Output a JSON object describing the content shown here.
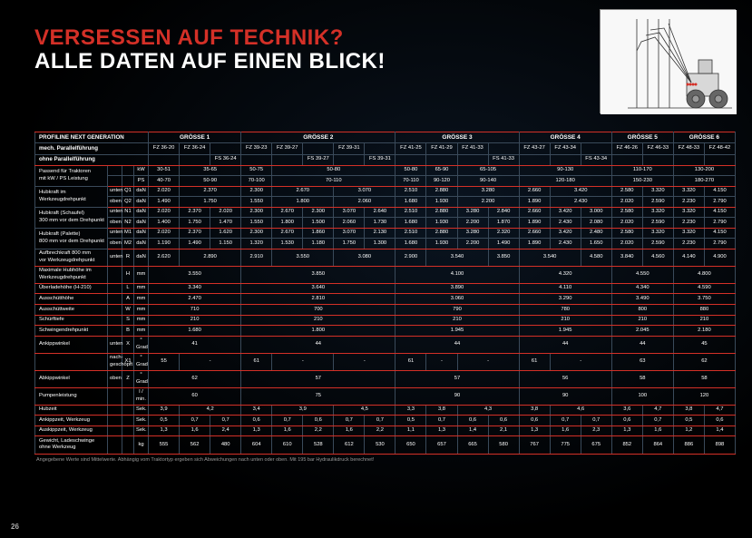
{
  "header": {
    "line1": "VERSESSEN AUF TECHNIK?",
    "line2": "ALLE DATEN AUF EINEN BLICK!"
  },
  "footnote": "Angegebene Werte sind Mittelwerte. Abhängig vom Traktortyp ergeben sich Abweichungen nach unten oder oben.\nMit 195 bar Hydraulikdruck berechnet!",
  "pagenum": "26",
  "section": "PROFILINE NEXT GENERATION",
  "groesse": [
    "GRÖSSE 1",
    "GRÖSSE 2",
    "GRÖSSE 3",
    "GRÖSSE 4",
    "GRÖSSE 5",
    "GRÖSSE 6"
  ],
  "row_mit": "mech. Parallelführung",
  "row_ohne": "ohne Parallelführung",
  "models_mit": [
    "FZ 36-20",
    "FZ 36-24",
    "",
    "FZ 39-23",
    "FZ 39-27",
    "",
    "FZ 39-31",
    "",
    "FZ 41-25",
    "FZ 41-29",
    "FZ 41-33",
    "",
    "FZ 43-27",
    "FZ 43-34",
    "",
    "FZ 46-26",
    "FZ 46-33",
    "FZ 48-33",
    "FZ 48-42"
  ],
  "models_ohne": [
    "",
    "",
    "FS 36-24",
    "",
    "",
    "FS 39-27",
    "",
    "FS 39-31",
    "",
    "",
    "",
    "FS 41-33",
    "",
    "",
    "FS 43-34",
    "",
    "",
    "",
    ""
  ],
  "rows": [
    {
      "lbl": "Passend für Traktoren\nmit kW / PS Leistung",
      "sub": [
        "",
        ""
      ],
      "u": [
        "kW",
        "PS"
      ],
      "v": [
        [
          "30-51",
          "40-70"
        ],
        [
          "35-65",
          "50-90"
        ],
        "",
        [
          "50-75",
          "70-100"
        ],
        [
          "50-80",
          "70-110"
        ],
        "",
        "",
        "",
        [
          "50-80",
          "70-110"
        ],
        [
          "65-90",
          "90-120"
        ],
        [
          "65-105",
          "90-140"
        ],
        "",
        [
          "90-130",
          "120-180"
        ],
        "",
        "",
        [
          "110-170",
          "150-230"
        ],
        "",
        [
          "130-200",
          "180-270"
        ],
        ""
      ]
    },
    {
      "lbl": "Hubkraft im\nWerkzeugdrehpunkt",
      "sub": [
        "unten",
        "oben"
      ],
      "ucol": [
        "Q1",
        "Q2"
      ],
      "u": [
        "daN",
        "daN"
      ],
      "v": [
        [
          "2.020",
          "1.490"
        ],
        [
          "2.370",
          "1.750"
        ],
        "",
        [
          "2.300",
          "1.550"
        ],
        [
          "2.670",
          "1.800"
        ],
        "",
        [
          "3.070",
          "2.060"
        ],
        "",
        [
          "2.510",
          "1.680"
        ],
        [
          "2.880",
          "1.930"
        ],
        [
          "3.280",
          "2.200"
        ],
        "",
        [
          "2.660",
          "1.890"
        ],
        [
          "3.420",
          "2.430"
        ],
        "",
        [
          "2.580",
          "2.020"
        ],
        [
          "3.320",
          "2.590"
        ],
        [
          "3.320",
          "2.230"
        ],
        [
          "4.150",
          "2.790"
        ]
      ]
    },
    {
      "lbl": "Hubkraft (Schaufel)\n300 mm vor dem Drehpunkt",
      "sub": [
        "unten",
        "oben"
      ],
      "ucol": [
        "N1",
        "N2"
      ],
      "u": [
        "daN",
        "daN"
      ],
      "v": [
        [
          "2.020",
          "1.400"
        ],
        [
          "2.370",
          "1.750"
        ],
        [
          "2.020",
          "1.470"
        ],
        [
          "2.300",
          "1.550"
        ],
        [
          "2.670",
          "1.800"
        ],
        [
          "2.300",
          "1.500"
        ],
        [
          "3.070",
          "2.060"
        ],
        [
          "2.640",
          "1.730"
        ],
        [
          "2.510",
          "1.680"
        ],
        [
          "2.880",
          "1.930"
        ],
        [
          "3.280",
          "2.200"
        ],
        [
          "2.840",
          "1.870"
        ],
        [
          "2.660",
          "1.890"
        ],
        [
          "3.420",
          "2.430"
        ],
        [
          "3.000",
          "2.080"
        ],
        [
          "2.580",
          "2.020"
        ],
        [
          "3.320",
          "2.590"
        ],
        [
          "3.320",
          "2.230"
        ],
        [
          "4.150",
          "2.790"
        ]
      ]
    },
    {
      "lbl": "Hubkraft (Palette)\n800 mm vor dem Drehpunkt",
      "sub": [
        "unten",
        "oben"
      ],
      "ucol": [
        "M1",
        "M2"
      ],
      "u": [
        "daN",
        "daN"
      ],
      "v": [
        [
          "2.020",
          "1.190"
        ],
        [
          "2.370",
          "1.490"
        ],
        [
          "1.620",
          "1.150"
        ],
        [
          "2.300",
          "1.320"
        ],
        [
          "2.670",
          "1.530"
        ],
        [
          "1.860",
          "1.180"
        ],
        [
          "3.070",
          "1.750"
        ],
        [
          "2.130",
          "1.300"
        ],
        [
          "2.510",
          "1.680"
        ],
        [
          "2.880",
          "1.930"
        ],
        [
          "3.280",
          "2.200"
        ],
        [
          "2.320",
          "1.490"
        ],
        [
          "2.660",
          "1.890"
        ],
        [
          "3.420",
          "2.430"
        ],
        [
          "2.480",
          "1.650"
        ],
        [
          "2.580",
          "2.020"
        ],
        [
          "3.320",
          "2.590"
        ],
        [
          "3.320",
          "2.230"
        ],
        [
          "4.150",
          "2.790"
        ]
      ]
    },
    {
      "lbl": "Aufbrechkraft 800 mm\nvor Werkzeugdrehpunkt",
      "sub": [
        "unten"
      ],
      "ucol": [
        "R"
      ],
      "u": [
        "daN"
      ],
      "v": [
        [
          "2.620"
        ],
        [
          "2.890"
        ],
        "",
        [
          "2.910"
        ],
        [
          "3.550"
        ],
        "",
        [
          "3.080"
        ],
        "",
        [
          "2.900"
        ],
        [
          "3.540"
        ],
        "",
        [
          "3.850"
        ],
        [
          "3.540"
        ],
        "",
        [
          "4.580"
        ],
        [
          "3.840"
        ],
        [
          "4.560"
        ],
        [
          "4.140"
        ],
        [
          "4.900"
        ]
      ]
    },
    {
      "lbl": "Maximale Hubhöhe im\nWerkzeugdrehpunkt",
      "u": "mm",
      "ucol": "H",
      "single": true,
      "v": [
        "3.550",
        "",
        "",
        "3.850",
        "",
        "",
        "",
        "",
        "4.100",
        "",
        "",
        "",
        "4.320",
        "",
        "",
        "4.550",
        "",
        "4.800",
        ""
      ]
    },
    {
      "lbl": "Überladehöhe (H-210)",
      "u": "mm",
      "ucol": "L",
      "single": true,
      "v": [
        "3.340",
        "",
        "",
        "3.640",
        "",
        "",
        "",
        "",
        "3.890",
        "",
        "",
        "",
        "4.110",
        "",
        "",
        "4.340",
        "",
        "4.590",
        ""
      ]
    },
    {
      "lbl": "Ausschütthöhe",
      "u": "mm",
      "ucol": "A",
      "single": true,
      "v": [
        "2.470",
        "",
        "",
        "2.810",
        "",
        "",
        "",
        "",
        "3.060",
        "",
        "",
        "",
        "3.290",
        "",
        "",
        "3.490",
        "",
        "3.750",
        ""
      ]
    },
    {
      "lbl": "Ausschüttweite",
      "u": "mm",
      "ucol": "W",
      "single": true,
      "v": [
        "710",
        "",
        "",
        "700",
        "",
        "",
        "",
        "",
        "790",
        "",
        "",
        "",
        "780",
        "",
        "",
        "800",
        "",
        "880",
        ""
      ]
    },
    {
      "lbl": "Schürftiefe",
      "u": "mm",
      "ucol": "S",
      "single": true,
      "v": [
        "210",
        "",
        "",
        "210",
        "",
        "",
        "",
        "",
        "210",
        "",
        "",
        "",
        "210",
        "",
        "",
        "210",
        "",
        "210",
        ""
      ]
    },
    {
      "lbl": "Schwingendrehpunkt",
      "u": "mm",
      "ucol": "B",
      "single": true,
      "v": [
        "1.680",
        "",
        "",
        "1.800",
        "",
        "",
        "",
        "",
        "1.945",
        "",
        "",
        "",
        "1.945",
        "",
        "",
        "2.045",
        "",
        "2.180",
        ""
      ]
    },
    {
      "lbl": "Ankippwinkel",
      "sub": [
        "unten"
      ],
      "ucol": [
        "X"
      ],
      "u": [
        "° Grad"
      ],
      "single": true,
      "v": [
        "41",
        "",
        "",
        "44",
        "",
        "",
        "",
        "",
        "44",
        "",
        "",
        "",
        "44",
        "",
        "",
        "44",
        "",
        "45",
        ""
      ]
    },
    {
      "lbl": "",
      "sub": [
        "nach-\ngeschöpft"
      ],
      "ucol": [
        "X1"
      ],
      "u": [
        "° Grad"
      ],
      "v": [
        [
          "55"
        ],
        [
          "-"
        ],
        "",
        [
          "61"
        ],
        [
          "-"
        ],
        "",
        [
          "-"
        ],
        "",
        [
          "61"
        ],
        [
          "-"
        ],
        [
          "-"
        ],
        "",
        [
          "61"
        ],
        [
          "-"
        ],
        "",
        [
          "63"
        ],
        "",
        [
          "62"
        ],
        ""
      ]
    },
    {
      "lbl": "Abkippwinkel",
      "sub": [
        "oben"
      ],
      "ucol": [
        "Z"
      ],
      "u": [
        "° Grad"
      ],
      "single": true,
      "v": [
        "62",
        "",
        "",
        "57",
        "",
        "",
        "",
        "",
        "57",
        "",
        "",
        "",
        "56",
        "",
        "",
        "58",
        "",
        "58",
        ""
      ]
    },
    {
      "lbl": "Pumpenleistung",
      "u": "l / min.",
      "ucol": "",
      "single": true,
      "v": [
        "60",
        "",
        "",
        "75",
        "",
        "",
        "",
        "",
        "90",
        "",
        "",
        "",
        "90",
        "",
        "",
        "100",
        "",
        "120",
        ""
      ]
    },
    {
      "lbl": "Hubzeit",
      "u": "Sek.",
      "ucol": "",
      "v": [
        [
          "3,9"
        ],
        [
          "4,2"
        ],
        "",
        [
          "3,4"
        ],
        [
          "3,9"
        ],
        "",
        [
          "4,5"
        ],
        "",
        [
          "3,3"
        ],
        [
          "3,8"
        ],
        [
          "4,3"
        ],
        "",
        [
          "3,8"
        ],
        [
          "4,6"
        ],
        "",
        [
          "3,6"
        ],
        [
          "4,7"
        ],
        [
          "3,8"
        ],
        [
          "4,7"
        ]
      ]
    },
    {
      "lbl": "Ankippzeit, Werkzeug",
      "u": "Sek.",
      "ucol": "",
      "v": [
        [
          "0,5"
        ],
        [
          "0,7"
        ],
        [
          "0,7"
        ],
        [
          "0,6"
        ],
        [
          "0,7"
        ],
        [
          "0,6"
        ],
        [
          "0,7"
        ],
        [
          "0,7"
        ],
        [
          "0,5"
        ],
        [
          "0,7"
        ],
        [
          "0,6"
        ],
        [
          "0,6"
        ],
        [
          "0,6"
        ],
        [
          "0,7"
        ],
        [
          "0,7"
        ],
        [
          "0,6"
        ],
        [
          "0,7"
        ],
        [
          "0,5"
        ],
        [
          "0,6"
        ]
      ]
    },
    {
      "lbl": "Auskippzeit, Werkzeug",
      "u": "Sek.",
      "ucol": "",
      "v": [
        [
          "1,3"
        ],
        [
          "1,6"
        ],
        [
          "2,4"
        ],
        [
          "1,3"
        ],
        [
          "1,6"
        ],
        [
          "2,2"
        ],
        [
          "1,6"
        ],
        [
          "2,2"
        ],
        [
          "1,1"
        ],
        [
          "1,3"
        ],
        [
          "1,4"
        ],
        [
          "2,1"
        ],
        [
          "1,3"
        ],
        [
          "1,6"
        ],
        [
          "2,3"
        ],
        [
          "1,3"
        ],
        [
          "1,6"
        ],
        [
          "1,2"
        ],
        [
          "1,4"
        ]
      ]
    },
    {
      "lbl": "Gewicht, Ladeschwinge\nohne Werkzeug",
      "u": "kg",
      "ucol": "",
      "v": [
        [
          "555"
        ],
        [
          "562"
        ],
        [
          "480"
        ],
        [
          "604"
        ],
        [
          "610"
        ],
        [
          "528"
        ],
        [
          "612"
        ],
        [
          "530"
        ],
        [
          "650"
        ],
        [
          "657"
        ],
        [
          "665"
        ],
        [
          "580"
        ],
        [
          "767"
        ],
        [
          "775"
        ],
        [
          "675"
        ],
        [
          "852"
        ],
        [
          "864"
        ],
        [
          "886"
        ],
        [
          "898"
        ]
      ]
    }
  ]
}
